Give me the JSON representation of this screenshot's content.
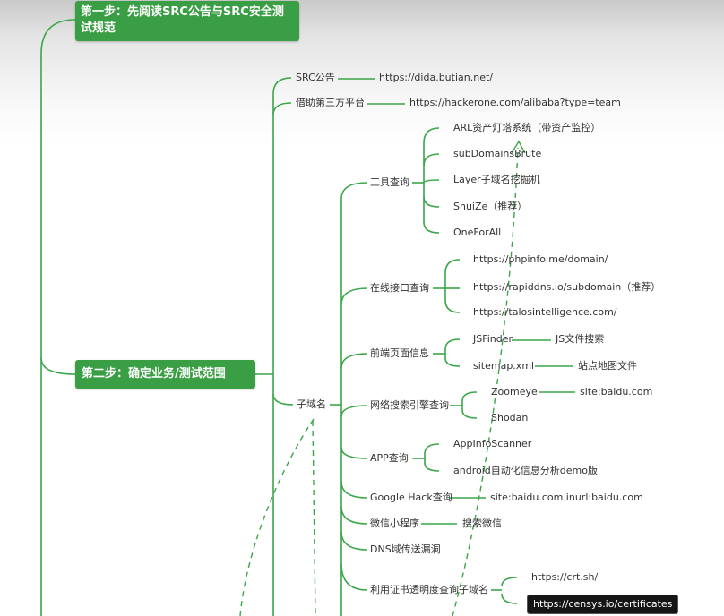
{
  "step1": "第一步：先阅读SRC公告与SRC安全测试规范",
  "step2": "第二步：确定业务/测试范围",
  "src_notice": {
    "label": "SRC公告",
    "url": "https://dida.butian.net/"
  },
  "third_party": {
    "label": "借助第三方平台",
    "url": "https://hackerone.com/alibaba?type=team"
  },
  "subdomain": "子域名",
  "tools": {
    "label": "工具查询",
    "items": [
      "ARL资产灯塔系统（带资产监控）",
      "subDomainsBrute",
      "Layer子域名挖掘机",
      "ShuiZe（推荐）",
      "OneForAll"
    ]
  },
  "online": {
    "label": "在线接口查询",
    "items": [
      "https://phpinfo.me/domain/",
      "https://rapiddns.io/subdomain（推荐）",
      "https://talosintelligence.com/"
    ]
  },
  "frontend": {
    "label": "前端页面信息",
    "jsfinder": "JSFinder",
    "jsfinder_desc": "JS文件搜索",
    "sitemap": "sitemap.xml",
    "sitemap_desc": "站点地图文件"
  },
  "cyberspace": {
    "label": "网络搜索引擎查询",
    "zoomeye": "Zoomeye",
    "zoomeye_query": "site:baidu.com",
    "shodan": "Shodan"
  },
  "app": {
    "label": "APP查询",
    "items": [
      "AppInfoScanner",
      "android自动化信息分析demo版"
    ]
  },
  "google": {
    "label": "Google Hack查询",
    "query": "site:baidu.com inurl:baidu.com"
  },
  "wechat": {
    "label": "微信小程序",
    "desc": "搜索微信"
  },
  "dns": {
    "label": "DNS域传送漏洞"
  },
  "cert": {
    "label": "利用证书透明度查询子域名",
    "items": [
      "https://crt.sh/",
      "https://censys.io/certificates"
    ]
  }
}
